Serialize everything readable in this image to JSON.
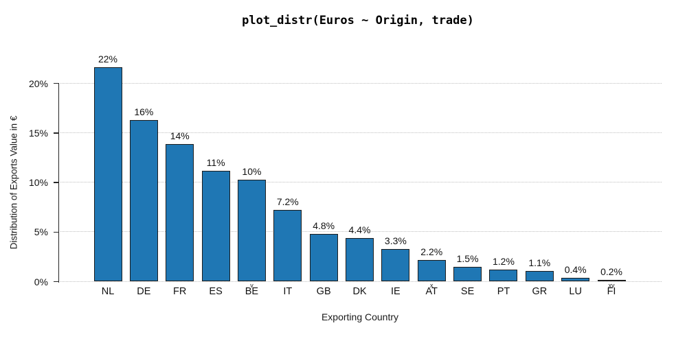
{
  "chart_data": {
    "type": "bar",
    "title": "plot_distr(Euros ~ Origin, trade)",
    "xlabel": "Exporting Country",
    "ylabel": "Distribution of Exports Value in €",
    "categories": [
      "NL",
      "DE",
      "FR",
      "ES",
      "BE",
      "IT",
      "GB",
      "DK",
      "IE",
      "AT",
      "SE",
      "PT",
      "GR",
      "LU",
      "FI"
    ],
    "values": [
      21.6,
      16.3,
      13.9,
      11.2,
      10.3,
      7.2,
      4.8,
      4.4,
      3.3,
      2.2,
      1.5,
      1.2,
      1.1,
      0.4,
      0.2
    ],
    "value_labels": [
      "22%",
      "16%",
      "14%",
      "11%",
      "10%",
      "7.2%",
      "4.8%",
      "4.4%",
      "3.3%",
      "2.2%",
      "1.5%",
      "1.2%",
      "1.1%",
      "0.4%",
      "0.2%"
    ],
    "category_marks": [
      "",
      "",
      "",
      "",
      "v",
      "",
      "",
      "",
      "",
      "x",
      "",
      "",
      "",
      "",
      "xv"
    ],
    "yticks": [
      {
        "value": 0,
        "label": "0%"
      },
      {
        "value": 5,
        "label": "5%"
      },
      {
        "value": 10,
        "label": "10%"
      },
      {
        "value": 15,
        "label": "15%"
      },
      {
        "value": 20,
        "label": "20%"
      }
    ],
    "ylim": [
      0,
      22.5
    ],
    "grid": "horizontal-dotted",
    "legend": "none",
    "bar_color": "#1f77b4",
    "bar_edge_color": "#1c1c1c",
    "grid_color": "#bfbfbf",
    "axis_color": "#262626"
  }
}
